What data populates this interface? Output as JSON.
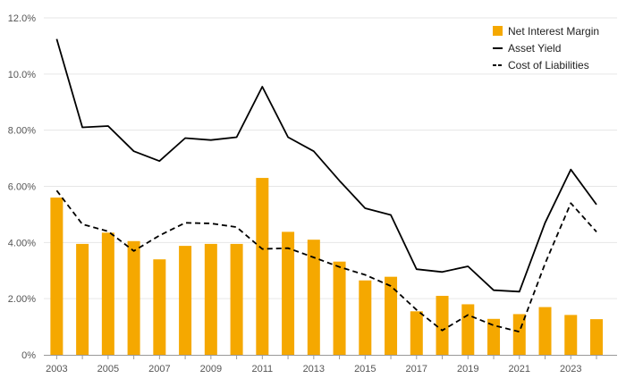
{
  "chart_data": {
    "type": "bar+line",
    "title": "",
    "xlabel": "",
    "ylabel": "",
    "ylim": [
      0,
      12
    ],
    "y_ticks": [
      "0%",
      "2.00%",
      "4.00%",
      "6.00%",
      "8.00%",
      "10.0%",
      "12.0%"
    ],
    "y_tick_values": [
      0,
      2,
      4,
      6,
      8,
      10,
      12
    ],
    "x_tick_labels": [
      "2003",
      "2005",
      "2007",
      "2009",
      "2011",
      "2013",
      "2015",
      "2017",
      "2019",
      "2021",
      "2023"
    ],
    "x": [
      2003,
      2004,
      2005,
      2006,
      2007,
      2008,
      2009,
      2010,
      2011,
      2012,
      2013,
      2014,
      2015,
      2016,
      2017,
      2018,
      2019,
      2020,
      2021,
      2022,
      2023,
      2024
    ],
    "grid": "horizontal",
    "legend_position": "top-right",
    "series": [
      {
        "name": "Net Interest Margin",
        "kind": "bar",
        "color": "#F5A800",
        "values": [
          5.6,
          3.95,
          4.35,
          4.05,
          3.4,
          3.88,
          3.95,
          3.95,
          6.3,
          4.38,
          4.1,
          3.32,
          2.65,
          2.78,
          1.55,
          2.1,
          1.8,
          1.28,
          1.45,
          1.7,
          1.42,
          1.27
        ]
      },
      {
        "name": "Asset Yield",
        "kind": "line",
        "style": "solid",
        "color": "#000000",
        "values": [
          11.25,
          8.1,
          8.15,
          7.25,
          6.9,
          7.72,
          7.65,
          7.75,
          9.55,
          7.75,
          7.25,
          6.2,
          5.22,
          4.98,
          3.05,
          2.95,
          3.15,
          2.3,
          2.25,
          4.7,
          6.6,
          5.35
        ]
      },
      {
        "name": "Cost of Liabilities",
        "kind": "line",
        "style": "dashed",
        "color": "#000000",
        "values": [
          5.85,
          4.65,
          4.4,
          3.7,
          4.25,
          4.7,
          4.68,
          4.55,
          3.77,
          3.8,
          3.47,
          3.13,
          2.85,
          2.45,
          1.6,
          0.87,
          1.42,
          1.05,
          0.82,
          3.25,
          5.4,
          4.38
        ]
      }
    ]
  }
}
